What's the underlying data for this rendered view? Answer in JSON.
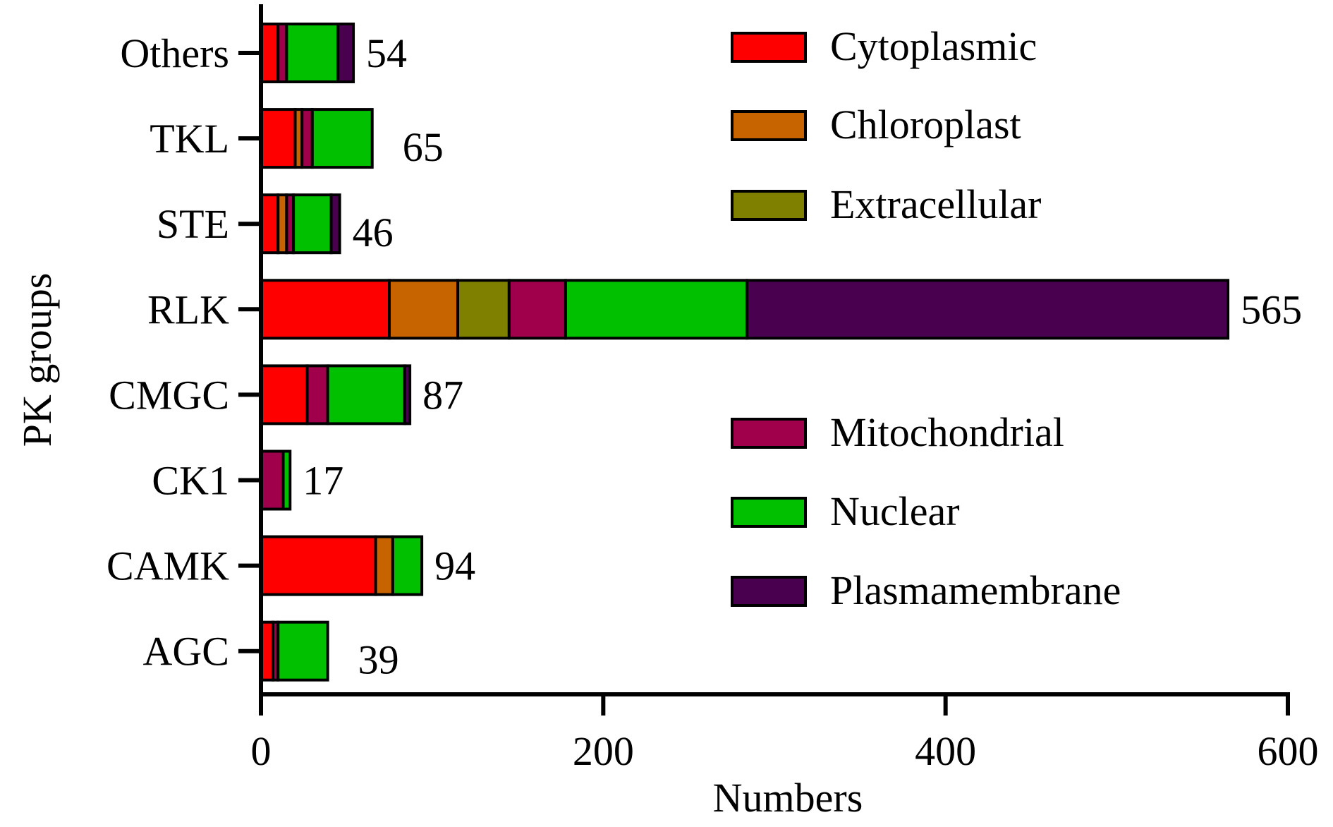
{
  "chart_data": {
    "type": "bar",
    "orientation": "horizontal",
    "stacked": true,
    "xlabel": "Numbers",
    "ylabel": "PK groups",
    "xlim": [
      0,
      600
    ],
    "xticks": [
      "0",
      "200",
      "400",
      "600"
    ],
    "grid": false,
    "legend_placement": "right",
    "categories": [
      "Others",
      "TKL",
      "STE",
      "RLK",
      "CMGC",
      "CK1",
      "CAMK",
      "AGC"
    ],
    "totals": [
      "54",
      "65",
      "46",
      "565",
      "87",
      "17",
      "94",
      "39"
    ],
    "series": [
      {
        "name": "Cytoplasmic",
        "color": "#ff0000",
        "values": [
          10,
          20,
          10,
          75,
          27,
          0,
          67,
          7
        ]
      },
      {
        "name": "Chloroplast",
        "color": "#c86400",
        "values": [
          0,
          4,
          5,
          40,
          0,
          0,
          10,
          0
        ]
      },
      {
        "name": "Extracellular",
        "color": "#808000",
        "values": [
          0,
          0,
          0,
          30,
          0,
          0,
          0,
          0
        ]
      },
      {
        "name": "Mitochondrial",
        "color": "#a0004b",
        "values": [
          5,
          6,
          4,
          33,
          12,
          13,
          0,
          3
        ]
      },
      {
        "name": "Nuclear",
        "color": "#00c000",
        "values": [
          30,
          35,
          22,
          106,
          45,
          4,
          17,
          29
        ]
      },
      {
        "name": "Plasmamembrane",
        "color": "#48004f",
        "values": [
          9,
          0,
          5,
          281,
          3,
          0,
          0,
          0
        ]
      }
    ]
  }
}
